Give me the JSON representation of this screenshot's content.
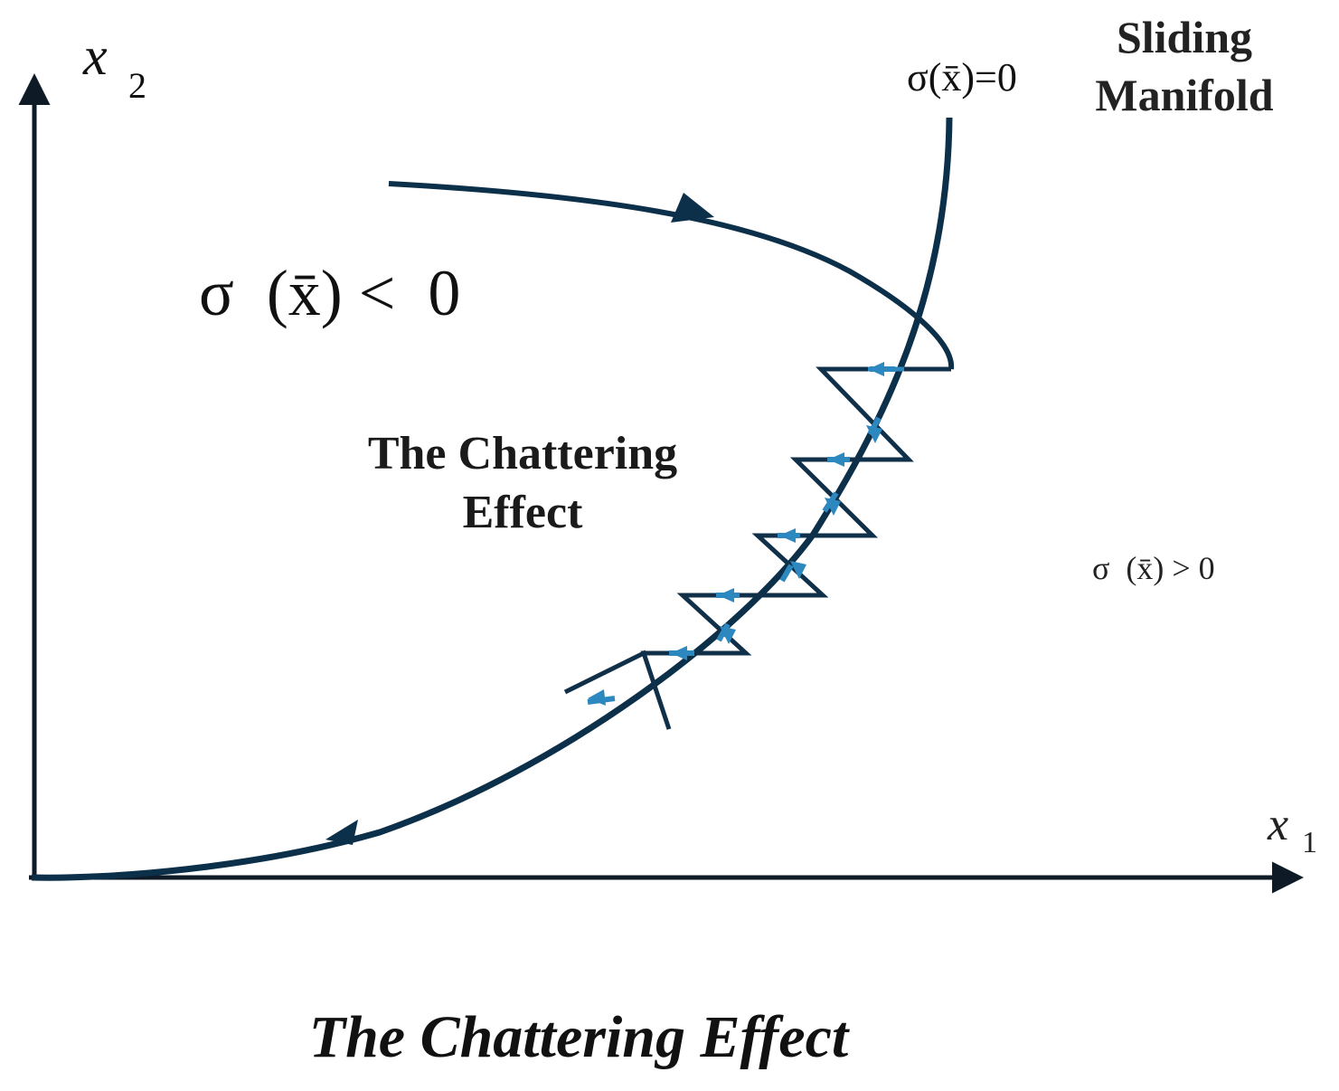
{
  "axes": {
    "y_symbol": "x",
    "y_subscript": "2",
    "x_symbol": "x",
    "x_subscript": "1"
  },
  "manifold": {
    "title_line1": "Sliding",
    "title_line2": "Manifold",
    "equation": "σ(x̄)=0"
  },
  "regions": {
    "negative": "σ  (x̄) <  0",
    "positive": "σ  (x̄) > 0"
  },
  "annotation": {
    "line1": "The Chattering",
    "line2": "Effect"
  },
  "caption": "The Chattering Effect",
  "colors": {
    "trajectory": "#0c2f4a",
    "chatter_dark": "#10304a",
    "chatter_light": "#2e88c0",
    "axis": "#0e1a26"
  }
}
